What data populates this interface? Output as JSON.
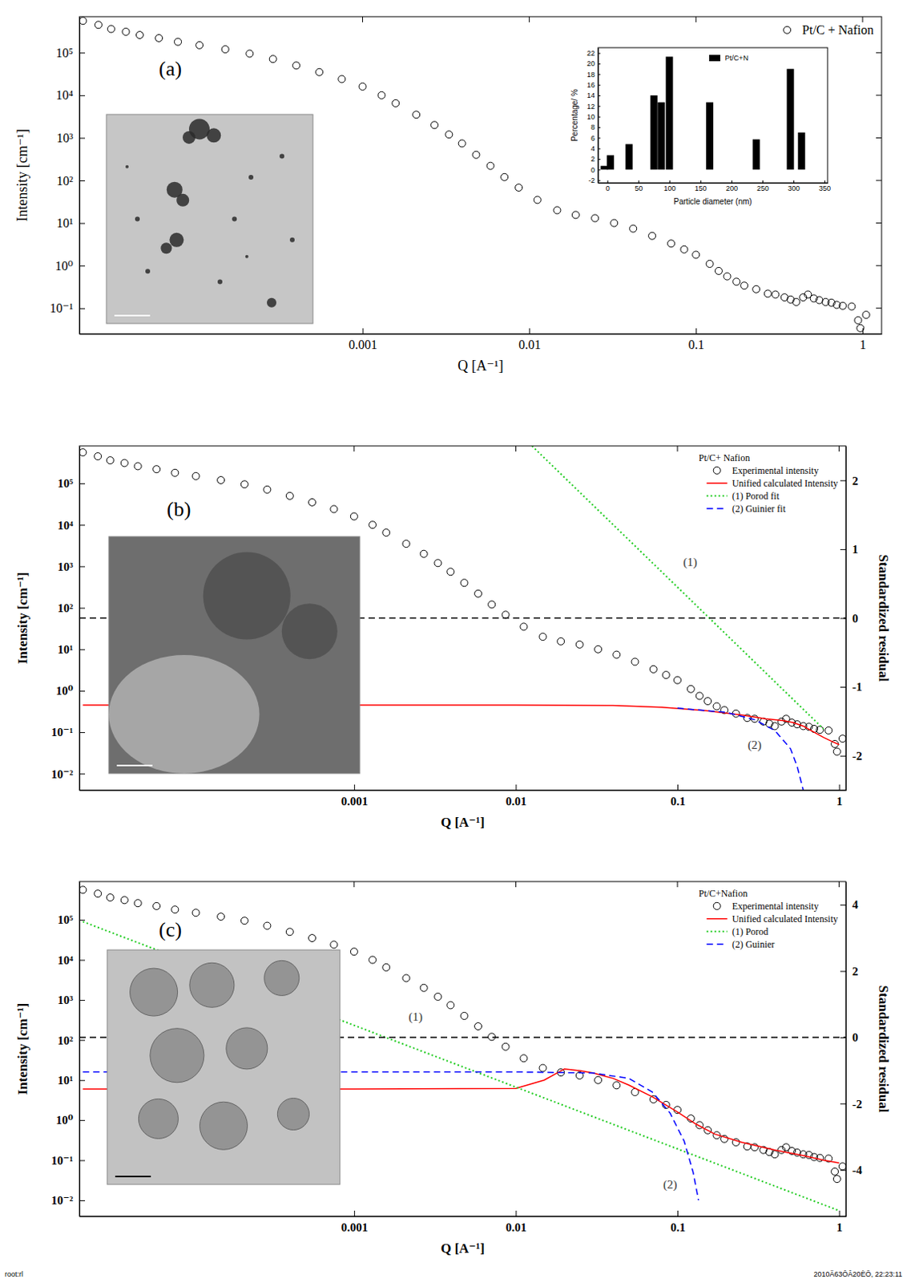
{
  "chart_data": [
    {
      "type": "scatter",
      "panel_label": "(a)",
      "x_label": "Q [A⁻¹]",
      "y_label": "Intensity [cm⁻¹]",
      "log": true,
      "xlim": [
        2e-05,
        1.3
      ],
      "ylim": [
        0.025,
        700000
      ],
      "xticks": [
        0.001,
        0.01,
        0.1,
        1
      ],
      "yticks": [
        {
          "value": 0.1,
          "label": "10⁻¹"
        },
        {
          "value": 1,
          "label": "10⁰"
        },
        {
          "value": 10,
          "label": "10¹"
        },
        {
          "value": 100,
          "label": "10²"
        },
        {
          "value": 1000,
          "label": "10³"
        },
        {
          "value": 10000,
          "label": "10⁴"
        },
        {
          "value": 100000,
          "label": "10⁵"
        }
      ],
      "legend": "top-right",
      "series": [
        {
          "name": "Pt/C + Nafion",
          "type": "scatter",
          "marker": "circle",
          "color": "#000000",
          "x": [
            2.1e-05,
            2.6e-05,
            3.1e-05,
            3.8e-05,
            4.6e-05,
            6e-05,
            7.8e-05,
            0.000105,
            0.00015,
            0.00021,
            0.00029,
            0.0004,
            0.00055,
            0.00075,
            0.001,
            0.0013,
            0.00158,
            0.0021,
            0.0027,
            0.0033,
            0.00395,
            0.0048,
            0.00585,
            0.0071,
            0.00865,
            0.0112,
            0.0147,
            0.019,
            0.0248,
            0.0323,
            0.042,
            0.0546,
            0.071,
            0.085,
            0.1,
            0.121,
            0.137,
            0.154,
            0.175,
            0.195,
            0.23,
            0.27,
            0.3,
            0.34,
            0.37,
            0.4,
            0.44,
            0.47,
            0.51,
            0.55,
            0.6,
            0.65,
            0.7,
            0.76,
            0.86,
            0.94,
            0.97,
            1.05
          ],
          "values": [
            560000,
            450000,
            360000,
            310000,
            260000,
            220000,
            180000,
            150000,
            120000,
            95000,
            71000,
            50000,
            35000,
            24000,
            16000,
            10000,
            6500,
            3500,
            2000,
            1200,
            740,
            400,
            220,
            120,
            68,
            35,
            20,
            15.5,
            13,
            10,
            7.4,
            5,
            3.3,
            2.4,
            1.8,
            1.1,
            0.75,
            0.56,
            0.42,
            0.34,
            0.28,
            0.22,
            0.21,
            0.18,
            0.16,
            0.14,
            0.18,
            0.21,
            0.17,
            0.155,
            0.14,
            0.135,
            0.12,
            0.114,
            0.11,
            0.052,
            0.034,
            0.07
          ]
        }
      ]
    },
    {
      "type": "bar",
      "x_label": "Particle diameter (nm)",
      "y_label": "Percentage/ %",
      "xlim": [
        -15,
        355
      ],
      "ylim": [
        -2.5,
        23
      ],
      "xticks": [
        0,
        50,
        100,
        150,
        200,
        250,
        300,
        350
      ],
      "yticks": [
        -2,
        0,
        2,
        4,
        6,
        8,
        10,
        12,
        14,
        16,
        18,
        20,
        22
      ],
      "legend": "top",
      "series": [
        {
          "name": "Pt/C+N",
          "color": "#000000",
          "x": [
            -5,
            5,
            35,
            75,
            87,
            100,
            165,
            240,
            295,
            313
          ],
          "values": [
            0.7,
            2.7,
            4.8,
            14,
            12.7,
            21.3,
            12.7,
            5.7,
            19,
            7
          ]
        }
      ]
    },
    {
      "type": "line",
      "panel_label": "(b)",
      "x_label": "Q [A⁻¹]",
      "y_label": "Intensity [cm⁻¹]",
      "y2_label": "Standardized residual",
      "log": true,
      "xlim": [
        2e-05,
        1.1
      ],
      "ylim": [
        0.004,
        800000
      ],
      "y2lim": [
        -2.5,
        2.5
      ],
      "xticks": [
        0.001,
        0.01,
        0.1,
        1
      ],
      "yticks": [
        {
          "value": 0.01,
          "label": "10⁻²"
        },
        {
          "value": 0.1,
          "label": "10⁻¹"
        },
        {
          "value": 1,
          "label": "10⁰"
        },
        {
          "value": 10,
          "label": "10¹"
        },
        {
          "value": 100,
          "label": "10²"
        },
        {
          "value": 1000,
          "label": "10³"
        },
        {
          "value": 10000,
          "label": "10⁴"
        },
        {
          "value": 100000,
          "label": "10⁵"
        }
      ],
      "y2ticks": [
        -2,
        -1,
        0,
        1,
        2
      ],
      "legend": "top-right",
      "legend_title": "Pt/C+ Nafion",
      "series": [
        {
          "name": "Experimental intensity",
          "type": "scatter",
          "marker": "circle",
          "color": "#000000",
          "x": [
            2.1e-05,
            2.6e-05,
            3.1e-05,
            3.8e-05,
            4.6e-05,
            6e-05,
            7.8e-05,
            0.000105,
            0.00015,
            0.00021,
            0.00029,
            0.0004,
            0.00055,
            0.00075,
            0.001,
            0.0013,
            0.00158,
            0.0021,
            0.0027,
            0.0033,
            0.00395,
            0.0048,
            0.00585,
            0.0071,
            0.00865,
            0.0112,
            0.0147,
            0.019,
            0.0248,
            0.0323,
            0.042,
            0.0546,
            0.071,
            0.085,
            0.1,
            0.121,
            0.137,
            0.154,
            0.175,
            0.195,
            0.23,
            0.27,
            0.3,
            0.34,
            0.37,
            0.4,
            0.44,
            0.47,
            0.51,
            0.55,
            0.6,
            0.65,
            0.7,
            0.76,
            0.86,
            0.94,
            0.97,
            1.05
          ],
          "values": [
            560000,
            450000,
            360000,
            310000,
            260000,
            220000,
            180000,
            150000,
            120000,
            95000,
            71000,
            50000,
            35000,
            24000,
            16000,
            10000,
            6500,
            3500,
            2000,
            1200,
            740,
            400,
            220,
            120,
            68,
            35,
            20,
            15.5,
            13,
            10,
            7.4,
            5,
            3.3,
            2.4,
            1.8,
            1.1,
            0.75,
            0.56,
            0.42,
            0.34,
            0.28,
            0.22,
            0.21,
            0.18,
            0.16,
            0.14,
            0.18,
            0.21,
            0.17,
            0.155,
            0.14,
            0.135,
            0.12,
            0.114,
            0.11,
            0.052,
            0.034,
            0.07
          ]
        },
        {
          "name": "Unified calculated Intensity",
          "type": "line",
          "line_style": "solid",
          "color": "#ff0000",
          "x": [
            2.1e-05,
            0.001,
            0.01,
            0.04,
            0.08,
            0.15,
            0.25,
            0.35,
            0.45,
            0.52,
            0.6,
            0.7,
            0.8,
            0.9,
            1.0
          ],
          "values": [
            0.45,
            0.45,
            0.45,
            0.44,
            0.4,
            0.33,
            0.26,
            0.21,
            0.19,
            0.17,
            0.14,
            0.1,
            0.075,
            0.06,
            0.05
          ]
        },
        {
          "name": "(1) Porod fit",
          "type": "line",
          "line_style": "dotted",
          "color": "#22cc22",
          "x": [
            0.0126,
            0.8
          ],
          "values": [
            800000,
            0.12
          ]
        },
        {
          "name": "(2) Guinier fit",
          "type": "line",
          "line_style": "dashed",
          "color": "#0000ff",
          "x": [
            0.1,
            0.2,
            0.3,
            0.4,
            0.5,
            0.55,
            0.6
          ],
          "values": [
            0.38,
            0.3,
            0.2,
            0.11,
            0.04,
            0.015,
            0.004
          ]
        },
        {
          "type": "line",
          "axis": "y2",
          "line_style": "dashed",
          "color": "#000000",
          "x": [
            2e-05,
            1.1
          ],
          "values": [
            0,
            0
          ]
        }
      ],
      "annotations": [
        {
          "text": "(1)",
          "x": 0.12,
          "y": 1000
        },
        {
          "text": "(2)",
          "x": 0.3,
          "y": 0.04
        }
      ]
    },
    {
      "type": "line",
      "panel_label": "(c)",
      "x_label": "Q [A⁻¹]",
      "y_label": "Intensity [cm⁻¹]",
      "y2_label": "Standardized residual",
      "log": true,
      "xlim": [
        2e-05,
        1.1
      ],
      "ylim": [
        0.004,
        900000
      ],
      "y2lim": [
        -5.4,
        4.7
      ],
      "xticks": [
        0.001,
        0.01,
        0.1,
        1
      ],
      "yticks": [
        {
          "value": 0.01,
          "label": "10⁻²"
        },
        {
          "value": 0.1,
          "label": "10⁻¹"
        },
        {
          "value": 1,
          "label": "10⁰"
        },
        {
          "value": 10,
          "label": "10¹"
        },
        {
          "value": 100,
          "label": "10²"
        },
        {
          "value": 1000,
          "label": "10³"
        },
        {
          "value": 10000,
          "label": "10⁴"
        },
        {
          "value": 100000,
          "label": "10⁵"
        }
      ],
      "y2ticks": [
        -4,
        -2,
        0,
        2,
        4
      ],
      "legend": "top-right",
      "legend_title": "Pt/C+Nafion",
      "series": [
        {
          "name": "Experimental intensity",
          "type": "scatter",
          "marker": "circle",
          "color": "#000000",
          "x": [
            2.1e-05,
            2.6e-05,
            3.1e-05,
            3.8e-05,
            4.6e-05,
            6e-05,
            7.8e-05,
            0.000105,
            0.00015,
            0.00021,
            0.00029,
            0.0004,
            0.00055,
            0.00075,
            0.001,
            0.0013,
            0.00158,
            0.0021,
            0.0027,
            0.0033,
            0.00395,
            0.0048,
            0.00585,
            0.0071,
            0.00865,
            0.0112,
            0.0147,
            0.019,
            0.0248,
            0.0323,
            0.042,
            0.0546,
            0.071,
            0.085,
            0.1,
            0.121,
            0.137,
            0.154,
            0.175,
            0.195,
            0.23,
            0.27,
            0.3,
            0.34,
            0.37,
            0.4,
            0.44,
            0.47,
            0.51,
            0.55,
            0.6,
            0.65,
            0.7,
            0.76,
            0.86,
            0.94,
            0.97,
            1.05
          ],
          "values": [
            560000,
            450000,
            360000,
            310000,
            260000,
            220000,
            180000,
            150000,
            120000,
            95000,
            71000,
            50000,
            35000,
            24000,
            16000,
            10000,
            6500,
            3500,
            2000,
            1200,
            740,
            400,
            220,
            120,
            68,
            35,
            20,
            15.5,
            13,
            10,
            7.4,
            5,
            3.3,
            2.4,
            1.8,
            1.1,
            0.75,
            0.56,
            0.42,
            0.34,
            0.28,
            0.22,
            0.21,
            0.18,
            0.16,
            0.14,
            0.18,
            0.21,
            0.17,
            0.155,
            0.14,
            0.135,
            0.12,
            0.114,
            0.11,
            0.052,
            0.034,
            0.07
          ]
        },
        {
          "name": "Unified calculated Intensity",
          "type": "line",
          "line_style": "solid",
          "color": "#ff0000",
          "x": [
            2.1e-05,
            0.001,
            0.01,
            0.015,
            0.02,
            0.025,
            0.03,
            0.04,
            0.05,
            0.07,
            0.1,
            0.13,
            0.17,
            0.25,
            0.4,
            0.6,
            0.8,
            1.0
          ],
          "values": [
            6,
            6,
            6.2,
            10,
            19,
            17,
            15,
            11,
            7.5,
            3.8,
            1.6,
            0.8,
            0.45,
            0.28,
            0.18,
            0.13,
            0.1,
            0.085
          ]
        },
        {
          "name": "(1) Porod",
          "type": "line",
          "line_style": "dotted",
          "color": "#22cc22",
          "x": [
            2.1e-05,
            1.0
          ],
          "values": [
            90000,
            0.0055
          ]
        },
        {
          "name": "(2) Guinier",
          "type": "line",
          "line_style": "dashed",
          "color": "#0000ff",
          "x": [
            2.1e-05,
            0.01,
            0.03,
            0.05,
            0.07,
            0.09,
            0.11,
            0.125,
            0.135
          ],
          "values": [
            16,
            16,
            15,
            11,
            5,
            1.5,
            0.3,
            0.05,
            0.01
          ]
        },
        {
          "type": "line",
          "axis": "y2",
          "line_style": "dashed",
          "color": "#000000",
          "x": [
            2e-05,
            1.1
          ],
          "values": [
            0,
            0
          ]
        }
      ],
      "annotations": [
        {
          "text": "(1)",
          "x": 0.0024,
          "y": 300
        },
        {
          "text": "(2)",
          "x": 0.09,
          "y": 0.02
        }
      ],
      "footer": [
        "root:rl",
        "2010Ä63ÔÂ20ÈÕ, 22:23:11"
      ]
    }
  ]
}
